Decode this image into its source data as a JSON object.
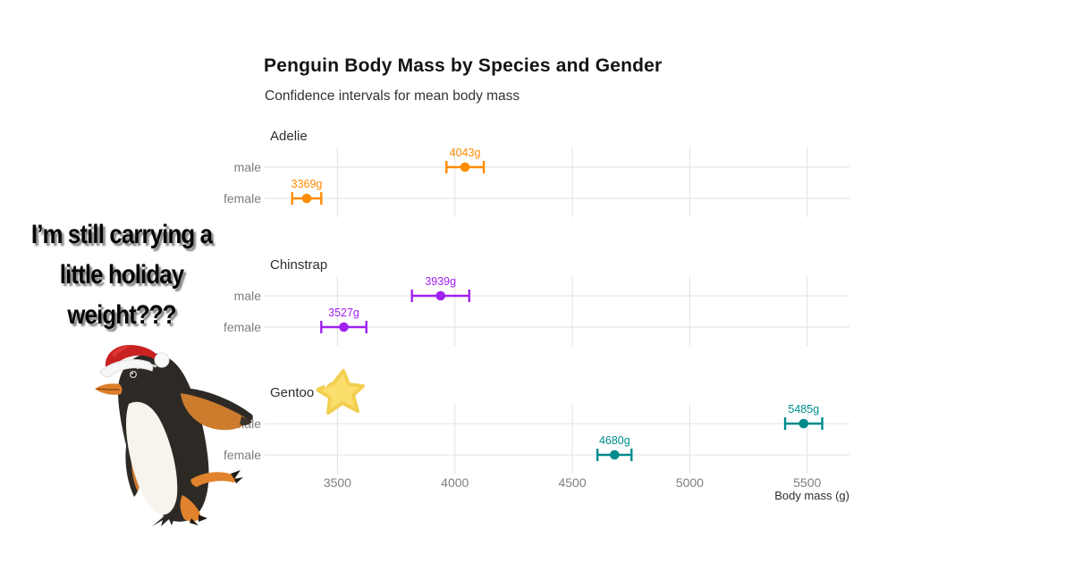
{
  "meme_caption": {
    "lines": [
      "I’m still carrying a",
      "little holiday",
      "weight???"
    ]
  },
  "chart_data": {
    "type": "scatter",
    "title": "Penguin Body Mass by Species and Gender",
    "subtitle": "Confidence intervals for mean body mass",
    "xlabel": "Body mass (g)",
    "xlim": [
      3190,
      5680
    ],
    "x_ticks": [
      3500,
      4000,
      4500,
      5000,
      5500
    ],
    "grid": true,
    "legend": "none",
    "row_categories": [
      "male",
      "female"
    ],
    "facets": [
      {
        "species": "Adelie",
        "color": "#FF8C00",
        "rows": [
          {
            "gender": "male",
            "mean": 4043,
            "ci_low": 3964,
            "ci_high": 4123,
            "label": "4043g"
          },
          {
            "gender": "female",
            "mean": 3369,
            "ci_low": 3307,
            "ci_high": 3431,
            "label": "3369g"
          }
        ]
      },
      {
        "species": "Chinstrap",
        "color": "#A020F0",
        "rows": [
          {
            "gender": "male",
            "mean": 3939,
            "ci_low": 3817,
            "ci_high": 4061,
            "label": "3939g"
          },
          {
            "gender": "female",
            "mean": 3527,
            "ci_low": 3431,
            "ci_high": 3623,
            "label": "3527g"
          }
        ]
      },
      {
        "species": "Gentoo",
        "color": "#008B8B",
        "rows": [
          {
            "gender": "male",
            "mean": 5485,
            "ci_low": 5406,
            "ci_high": 5564,
            "label": "5485g"
          },
          {
            "gender": "female",
            "mean": 4680,
            "ci_low": 4607,
            "ci_high": 4752,
            "label": "4680g"
          }
        ]
      }
    ]
  },
  "decorations": {
    "penguin_sticker": "gentoo penguin wearing a santa hat",
    "star_sticker": "yellow cartoon star"
  },
  "colors": {
    "adelie": "#FF8C00",
    "chinstrap": "#A020F0",
    "gentoo": "#008B8B",
    "axis_text": "#7E7E7E",
    "grid": "#E6E6E6",
    "text": "#2E2E2E"
  }
}
